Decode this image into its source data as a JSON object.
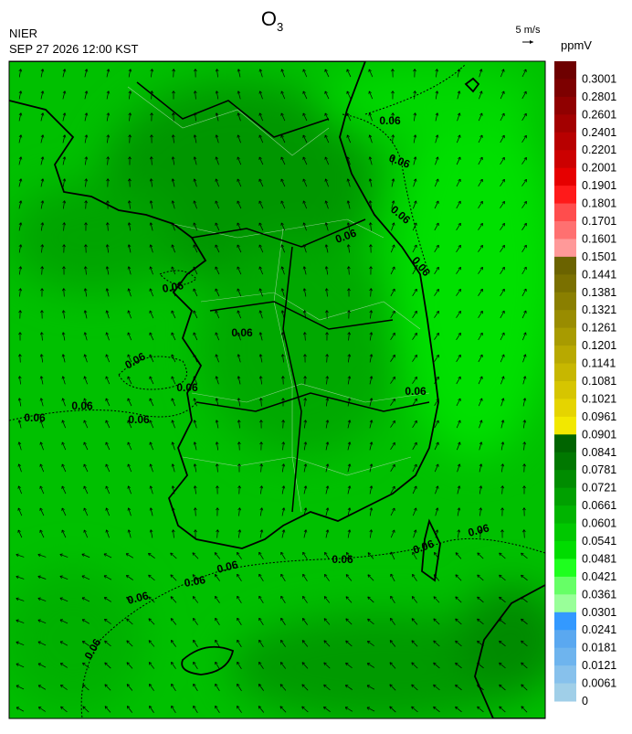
{
  "header": {
    "title": "O",
    "title_subscript": "3",
    "agency": "NIER",
    "datetime": "SEP 27 2026 12:00 KST"
  },
  "wind_scale": {
    "label": "5 m/s"
  },
  "legend": {
    "unit": "ppmV",
    "labels": [
      0.3001,
      0.2801,
      0.2601,
      0.2401,
      0.2201,
      0.2001,
      0.1901,
      0.1801,
      0.1701,
      0.1601,
      0.1501,
      0.1441,
      0.1381,
      0.1321,
      0.1261,
      0.1201,
      0.1141,
      0.1081,
      0.1021,
      0.0961,
      0.0901,
      0.0841,
      0.0781,
      0.0721,
      0.0661,
      0.0601,
      0.0541,
      0.0481,
      0.0421,
      0.0361,
      0.0301,
      0.0241,
      0.0181,
      0.0121,
      0.0061,
      0
    ],
    "colors": [
      "#6e0000",
      "#7d0000",
      "#900000",
      "#a30000",
      "#b80000",
      "#cc0000",
      "#e60000",
      "#ff1a1a",
      "#ff4d4d",
      "#ff7070",
      "#ff9999",
      "#6b6300",
      "#7a7000",
      "#8a7f00",
      "#998c00",
      "#a89b00",
      "#b8a900",
      "#c7b700",
      "#d6c500",
      "#e5d400",
      "#f2e800",
      "#006400",
      "#007800",
      "#008c00",
      "#00a000",
      "#00b400",
      "#00c800",
      "#00dc00",
      "#1eff1e",
      "#66ff66",
      "#99ff99",
      "#3399ff",
      "#5aa8f0",
      "#6eb4ee",
      "#87c1ec",
      "#a0cfe8"
    ]
  },
  "contour_labels": [
    "0.06",
    "0.06",
    "0.06",
    "0.06",
    "0.06",
    "0.06",
    "0.06",
    "0.06",
    "0.06",
    "0.06",
    "0.06",
    "0.06",
    "0.06",
    "0.06",
    "0.06",
    "0.06",
    "0.06",
    "0.06",
    "0.06",
    "0.06"
  ]
}
